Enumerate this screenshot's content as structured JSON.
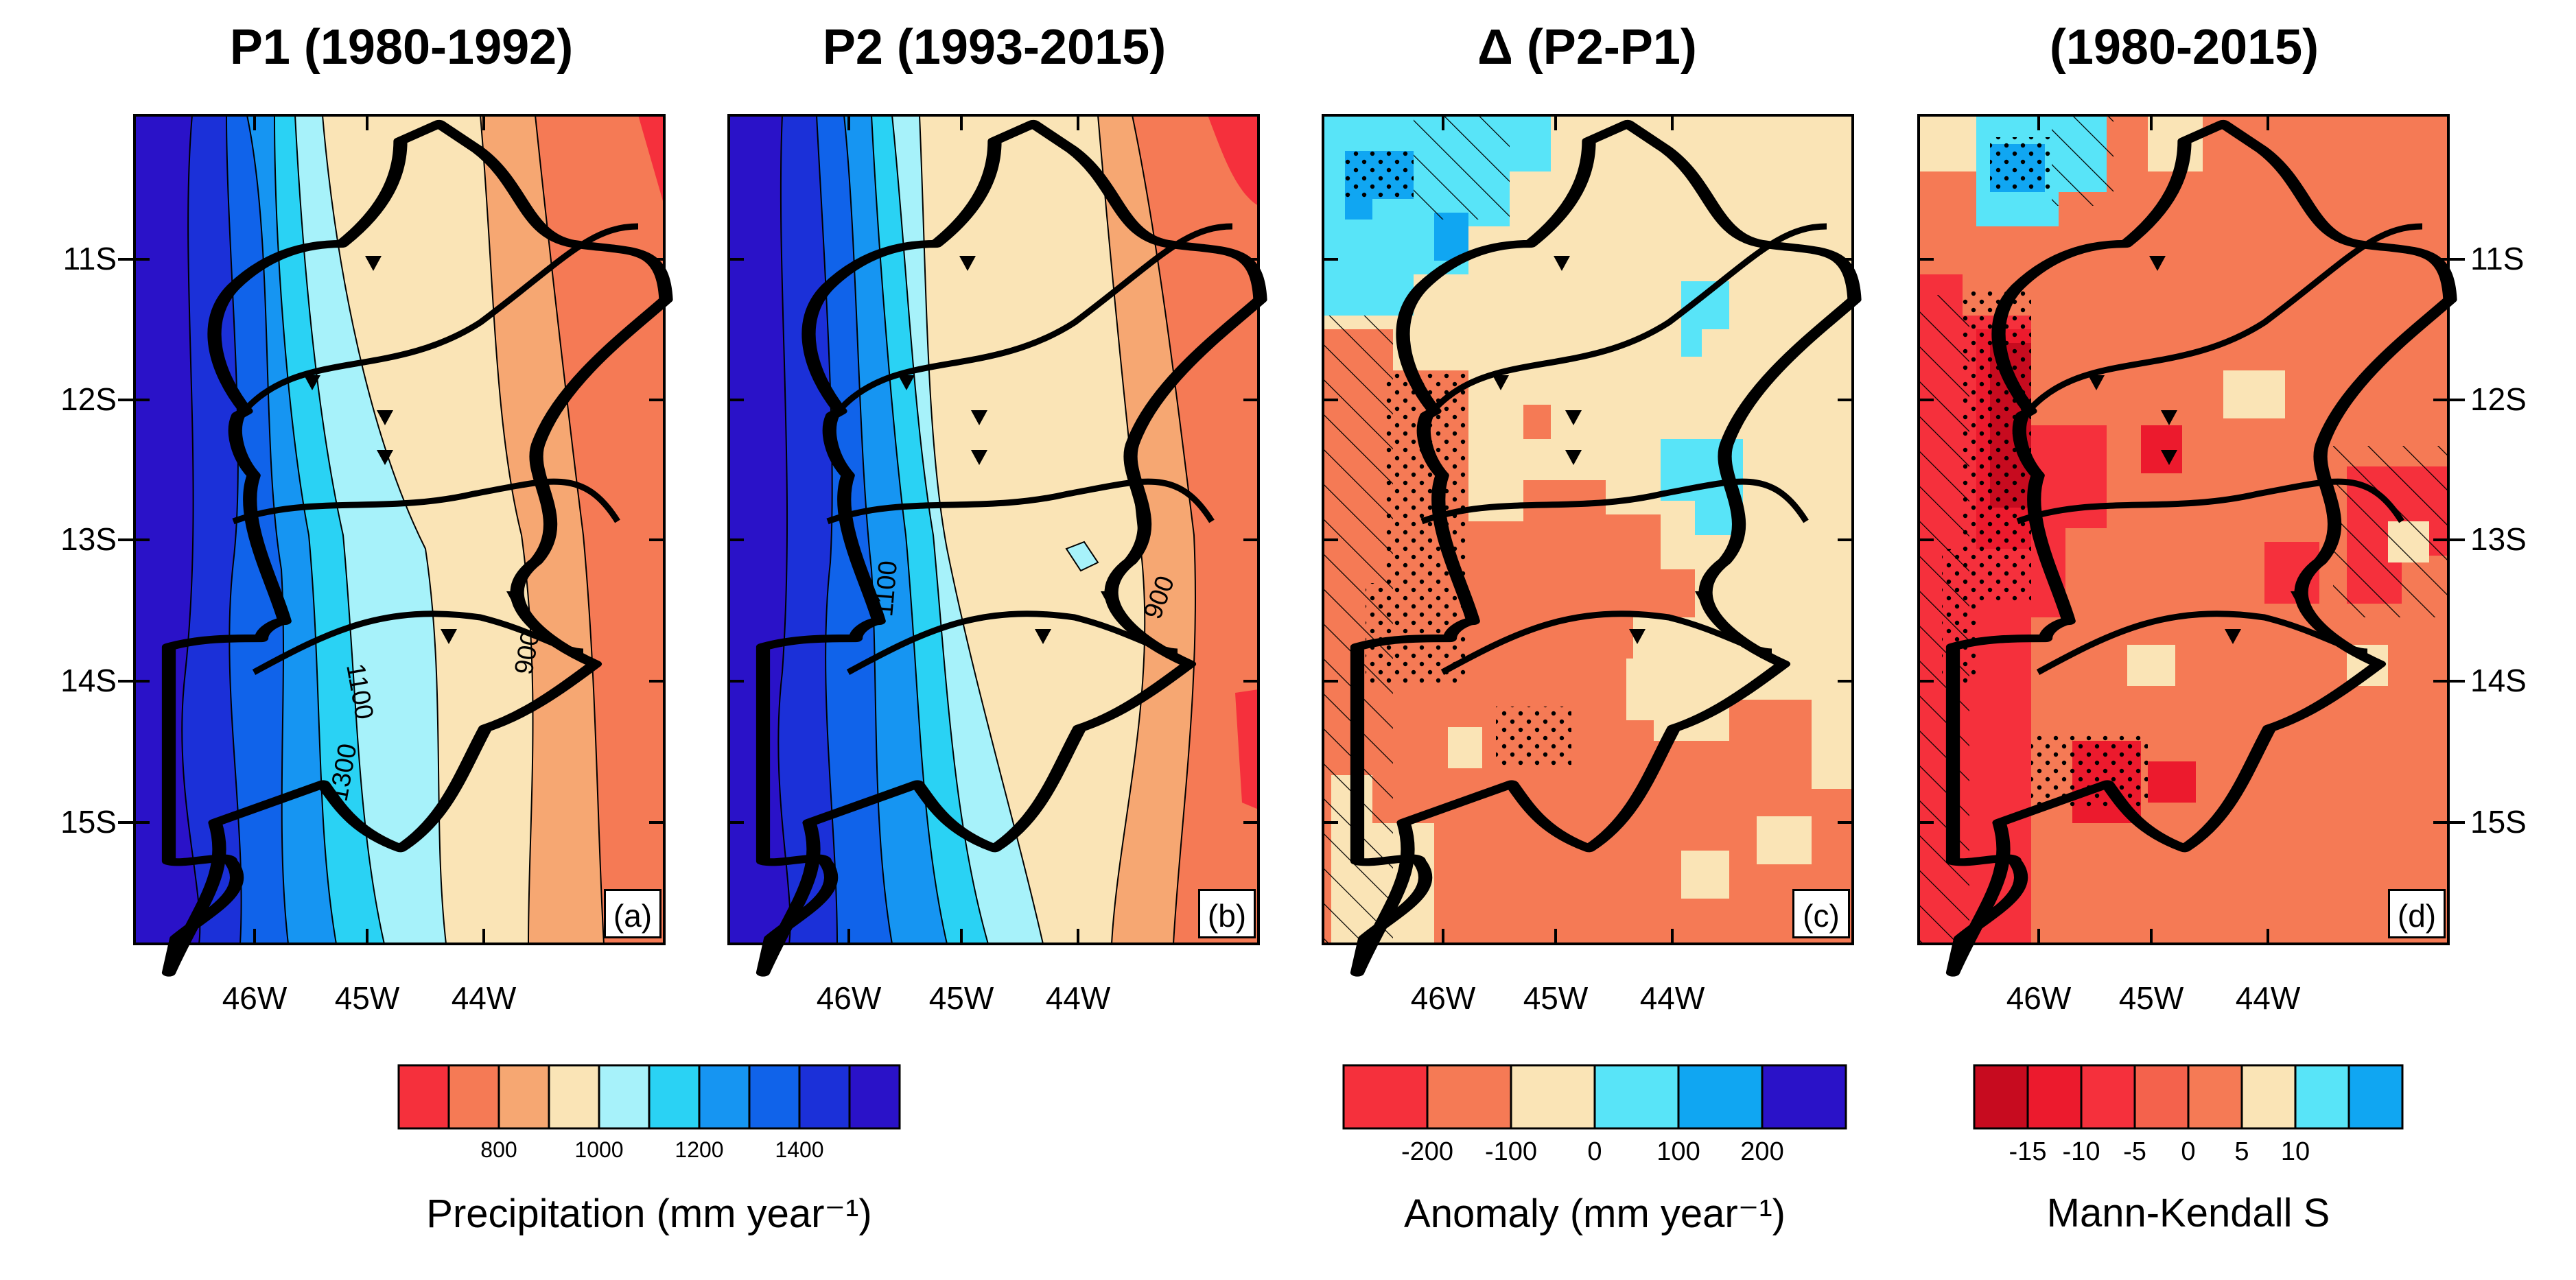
{
  "panels": [
    {
      "title": "P1 (1980-1992)",
      "label": "(a)",
      "contour_labels": [
        "1100",
        "1300",
        "900"
      ]
    },
    {
      "title": "P2 (1993-2015)",
      "label": "(b)",
      "contour_labels": [
        "1100",
        "900"
      ]
    },
    {
      "title": "Δ (P2-P1)",
      "label": "(c)"
    },
    {
      "title": "(1980-2015)",
      "label": "(d)"
    }
  ],
  "axes": {
    "x_ticks": [
      "46W",
      "45W",
      "44W"
    ],
    "y_ticks": [
      "11S",
      "12S",
      "13S",
      "14S",
      "15S"
    ]
  },
  "colorbars": {
    "precip": {
      "title": "Precipitation (mm year⁻¹)",
      "labels": [
        "800",
        "1000",
        "1200",
        "1400"
      ],
      "colors": [
        "#f5303c",
        "#f57a55",
        "#f6a772",
        "#fae4b6",
        "#a7f2fa",
        "#2ad2f4",
        "#1695f2",
        "#1063ea",
        "#1b30d8",
        "#2a12c8"
      ]
    },
    "anomaly": {
      "title": "Anomaly (mm year⁻¹)",
      "labels": [
        "-200",
        "-100",
        "0",
        "100",
        "200"
      ],
      "colors": [
        "#f5303c",
        "#f57a55",
        "#fae4b6",
        "#58e4f8",
        "#10a6f2",
        "#2a12c8"
      ]
    },
    "mk": {
      "title": "Mann-Kendall S",
      "labels": [
        "-15",
        "-10",
        "-5",
        "0",
        "5",
        "10"
      ],
      "colors": [
        "#c70b1f",
        "#ec1a2d",
        "#f5303c",
        "#f4624c",
        "#f57a55",
        "#fae4b6",
        "#58e4f8",
        "#10a6f2"
      ]
    }
  },
  "colors": {
    "red": "#f5303c",
    "orange": "#f57a55",
    "cream": "#fae4b6",
    "light_blue": "#58e4f8",
    "blue": "#10a6f2"
  }
}
